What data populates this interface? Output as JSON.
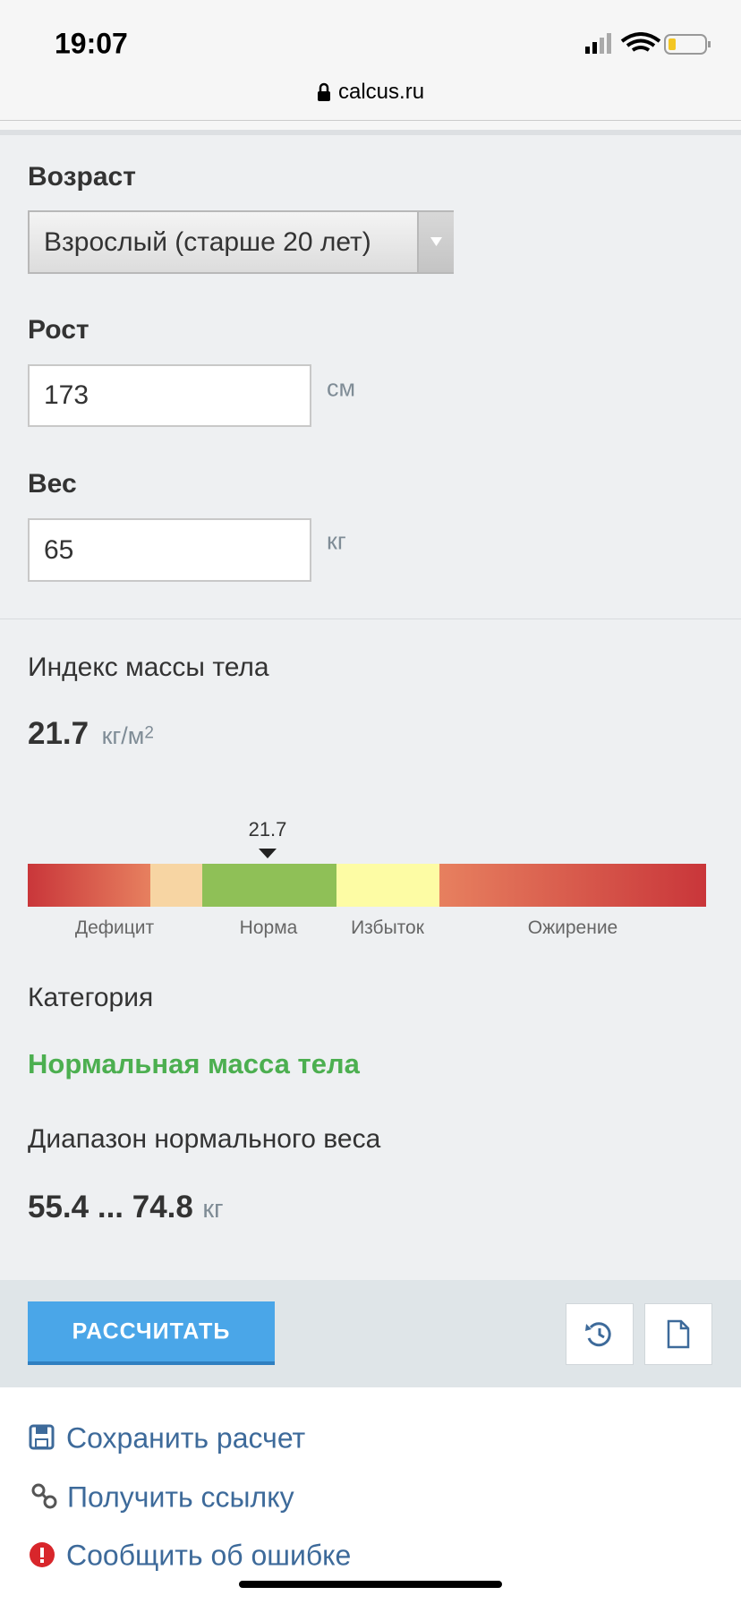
{
  "status_bar": {
    "time": "19:07",
    "url": "calcus.ru"
  },
  "form": {
    "age": {
      "label": "Возраст",
      "value": "Взрослый (старше 20 лет)"
    },
    "height": {
      "label": "Рост",
      "value": "173",
      "unit": "см"
    },
    "weight": {
      "label": "Вес",
      "value": "65",
      "unit": "кг"
    }
  },
  "result": {
    "bmi_label": "Индекс массы тела",
    "bmi_value": "21.7",
    "bmi_unit": "кг/м",
    "bmi_unit_power": "2",
    "scale": {
      "marker": "21.7",
      "labels": [
        "Дефицит",
        "Норма",
        "Избыток",
        "Ожирение"
      ]
    },
    "category_label": "Категория",
    "category": "Нормальная масса тела",
    "range_label": "Диапазон нормального веса",
    "range": "55.4 ... 74.8",
    "range_unit": "кг"
  },
  "actions": {
    "calculate": "РАССЧИТАТЬ"
  },
  "links": [
    "Сохранить расчет",
    "Получить ссылку",
    "Сообщить об ошибке"
  ]
}
